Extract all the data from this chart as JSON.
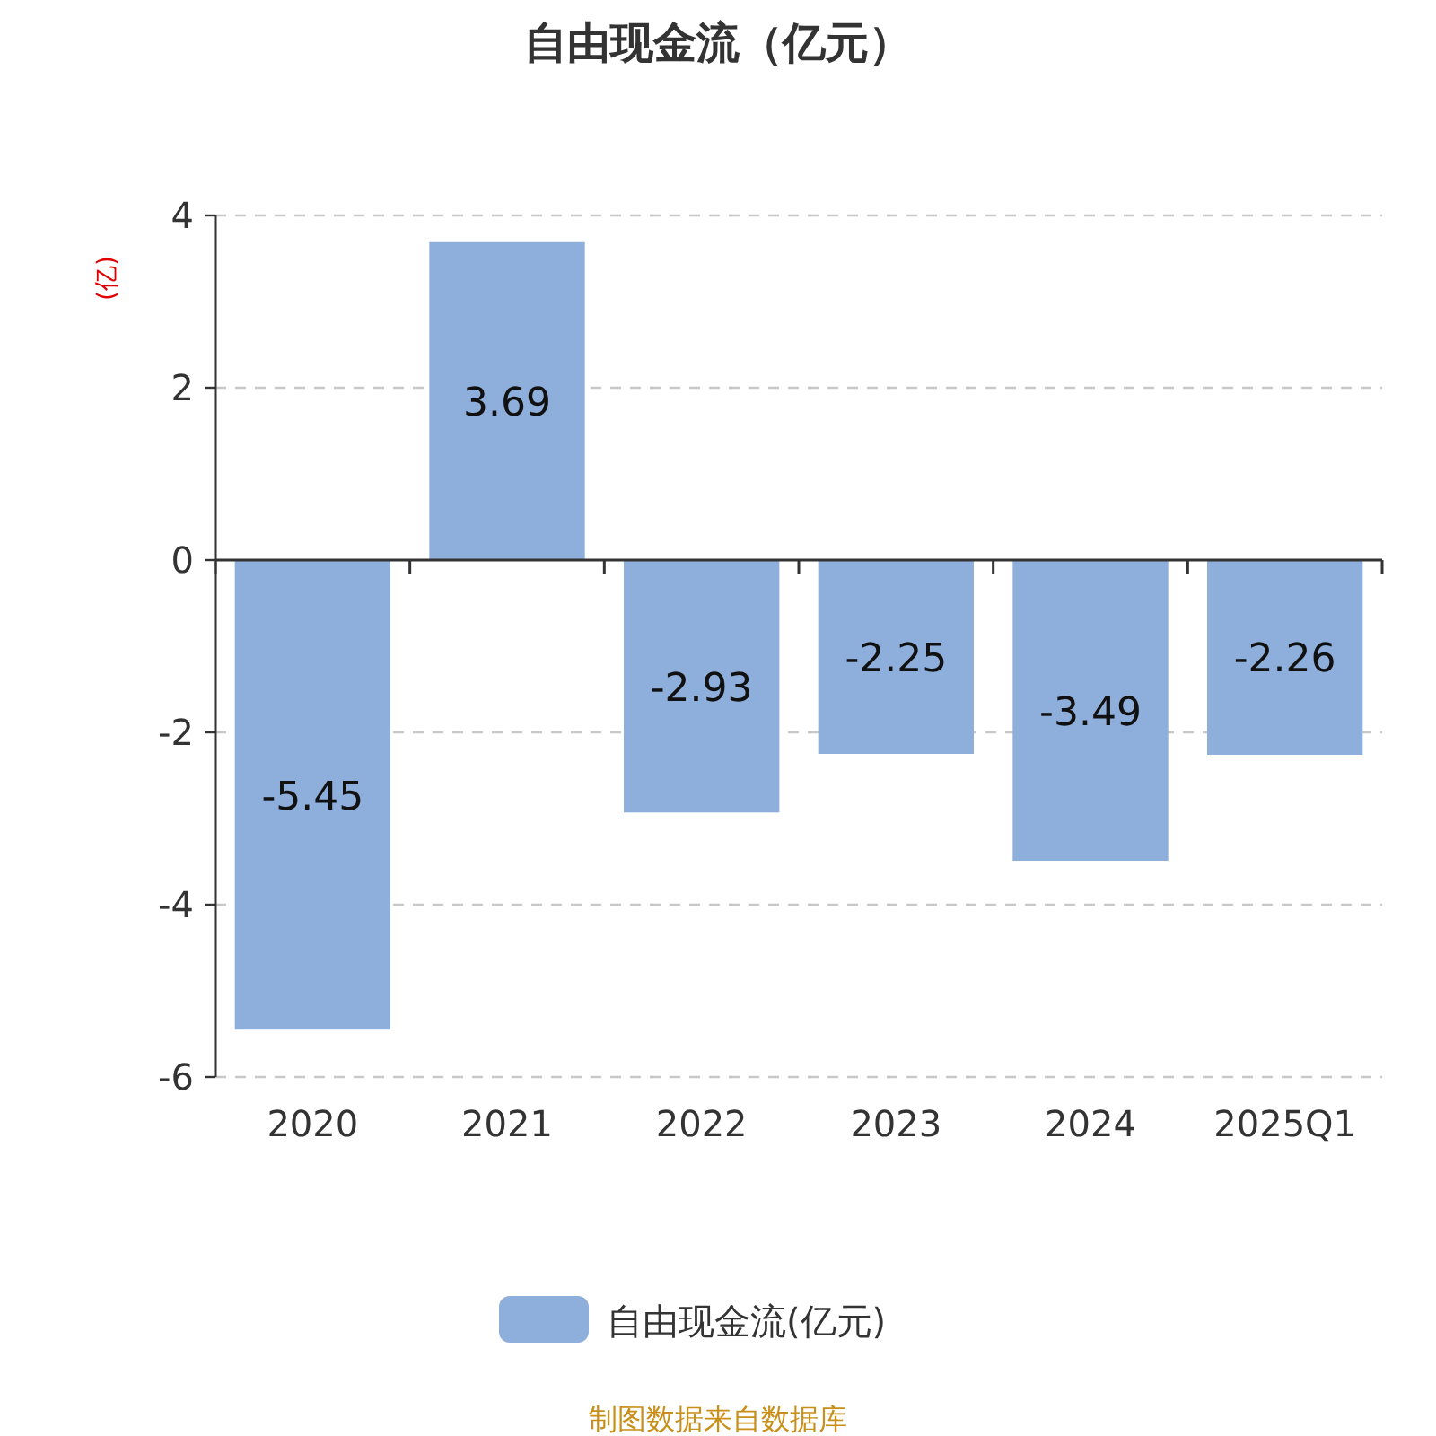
{
  "chart_data": {
    "type": "bar",
    "title": "自由现金流（亿元）",
    "ylabel": "(亿)",
    "categories": [
      "2020",
      "2021",
      "2022",
      "2023",
      "2024",
      "2025Q1"
    ],
    "series": [
      {
        "name": "自由现金流(亿元)",
        "color": "#8eaedb",
        "values": [
          -5.45,
          3.69,
          -2.93,
          -2.25,
          -3.49,
          -2.26
        ]
      }
    ],
    "ylim": [
      -6,
      4
    ],
    "yticks": [
      -6,
      -4,
      -2,
      0,
      2,
      4
    ],
    "grid": "y",
    "legend": "bottom",
    "data_labels": true,
    "annotations": [
      "制图数据来自数据库"
    ]
  }
}
